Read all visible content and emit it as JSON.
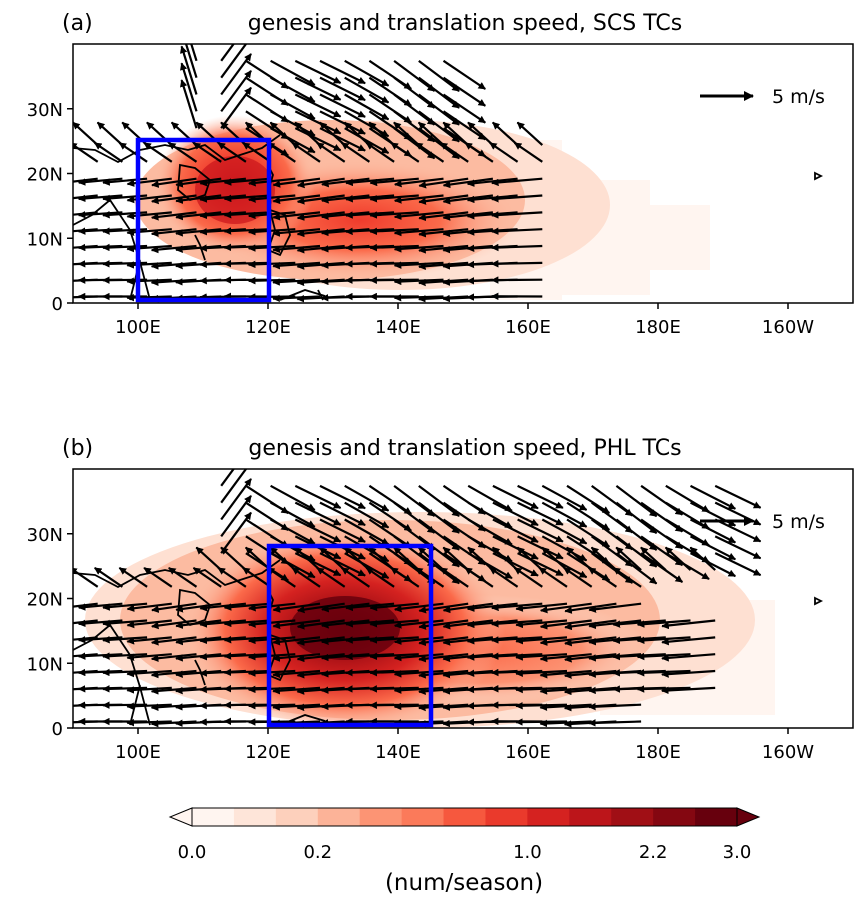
{
  "figure": {
    "colorbar": {
      "label": "(num/season)",
      "levels": [
        0.0,
        0.05,
        0.1,
        0.2,
        0.3,
        0.4,
        0.6,
        0.8,
        1.0,
        1.4,
        1.8,
        2.2,
        2.6,
        3.0
      ],
      "tick_values": [
        0.0,
        0.2,
        1.0,
        2.2,
        3.0
      ],
      "tick_labels": [
        "0.0",
        "0.2",
        "1.0",
        "2.2",
        "3.0"
      ],
      "colors": [
        "#fff5f0",
        "#fee5d9",
        "#fdd0bc",
        "#fcb398",
        "#fc9474",
        "#fb7a5a",
        "#f6583e",
        "#ea3a2c",
        "#d52220",
        "#bc151a",
        "#a00f15",
        "#840711",
        "#67000d"
      ]
    },
    "vector_key_label": "5 m/s",
    "box_color": "#0000ff"
  },
  "chart_data": [
    {
      "type": "heatmap",
      "panel_label": "(a)",
      "title": "genesis and translation speed, SCS TCs",
      "x_ticks": [
        "100E",
        "120E",
        "140E",
        "160E",
        "180E",
        "160W"
      ],
      "y_ticks": [
        "0",
        "10N",
        "20N",
        "30N"
      ],
      "xlim": [
        90,
        210
      ],
      "ylim": [
        0,
        40
      ],
      "box": {
        "lon": [
          100,
          120
        ],
        "lat": [
          0,
          25
        ]
      },
      "density_maxima": [
        {
          "lon": 115,
          "lat": 17,
          "value": 2.2
        },
        {
          "lon": 140,
          "lat": 11,
          "value": 1.0
        }
      ],
      "vector_key": {
        "label": "5 m/s",
        "speed": 5
      },
      "flow_pattern": "westward 10-25N, recurving north-east beyond 25N"
    },
    {
      "type": "heatmap",
      "panel_label": "(b)",
      "title": "genesis and translation speed, PHL TCs",
      "x_ticks": [
        "100E",
        "120E",
        "140E",
        "160E",
        "180E",
        "160W"
      ],
      "y_ticks": [
        "0",
        "10N",
        "20N",
        "30N"
      ],
      "xlim": [
        90,
        210
      ],
      "ylim": [
        0,
        40
      ],
      "box": {
        "lon": [
          120,
          145
        ],
        "lat": [
          0,
          28
        ]
      },
      "density_maxima": [
        {
          "lon": 133,
          "lat": 15,
          "value": 3.0
        }
      ],
      "vector_key": {
        "label": "5 m/s",
        "speed": 5
      },
      "flow_pattern": "west-northwestward 5-25N, recurving north-east beyond 25N"
    }
  ]
}
